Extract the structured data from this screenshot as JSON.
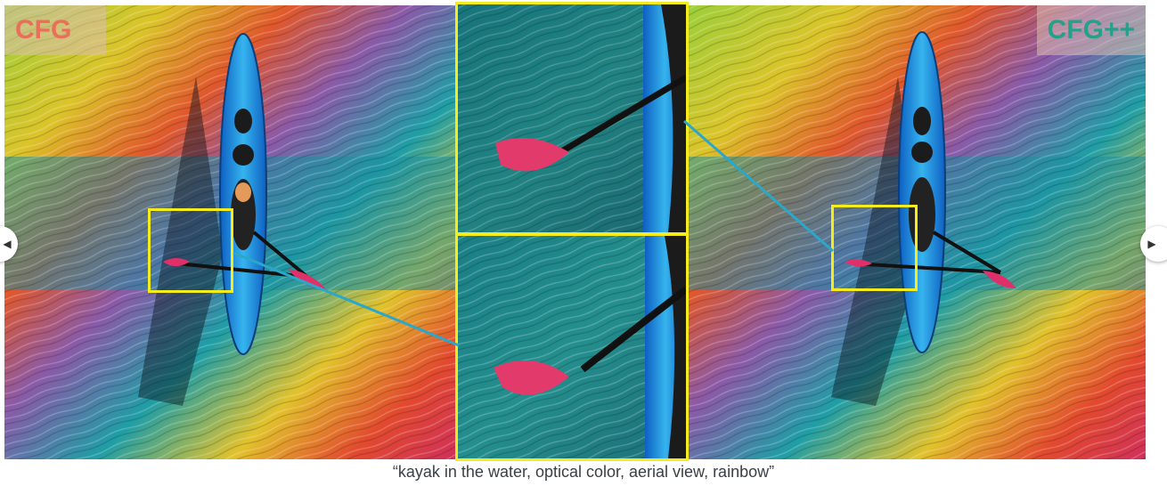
{
  "comparison": {
    "left_label": "CFG",
    "right_label": "CFG++",
    "left_label_color": "#ea6f5a",
    "right_label_color": "#24a08b",
    "highlight_color": "#f4ec1e",
    "connector_color": "#2aa7c9"
  },
  "caption": "“kayak in the water, optical color, aerial view, rainbow”",
  "nav": {
    "prev_icon": "chevron-left-icon",
    "next_icon": "chevron-right-icon",
    "prev_glyph": "◀",
    "next_glyph": "▶"
  }
}
